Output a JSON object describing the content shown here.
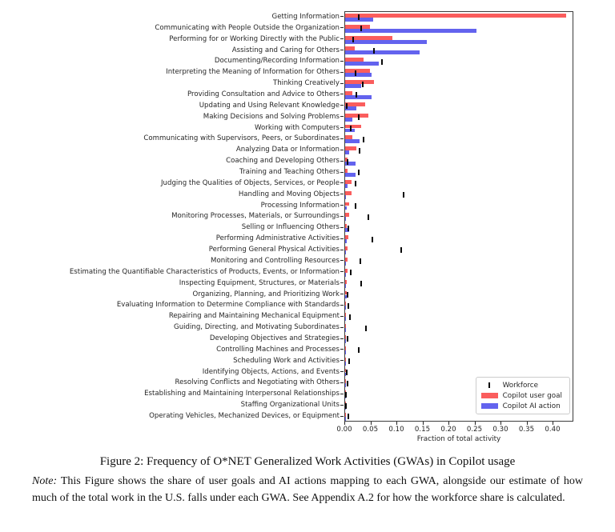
{
  "figure": {
    "caption": "Figure 2: Frequency of O*NET Generalized Work Activities (GWAs) in Copilot usage",
    "note_label": "Note:",
    "note_text": "This Figure shows the share of user goals and AI actions mapping to each GWA, alongside our estimate of how much of the total work in the U.S. falls under each GWA. See Appendix A.2 for how the workforce share is calculated."
  },
  "colors": {
    "copilot_user_goal": "#fa5d5d",
    "copilot_ai_action": "#6363ee",
    "workforce_marker": "#0a0a0a",
    "axis": "#262626"
  },
  "chart_data": {
    "type": "bar",
    "orientation": "horizontal",
    "title": "",
    "xlabel": "Fraction of total activity",
    "xlim": [
      0,
      0.44
    ],
    "xticks": [
      0.0,
      0.05,
      0.1,
      0.15,
      0.2,
      0.25,
      0.3,
      0.35,
      0.4
    ],
    "grid": false,
    "legend_position": "lower right",
    "categories": [
      "Getting Information",
      "Communicating with People Outside the Organization",
      "Performing for or Working Directly with the Public",
      "Assisting and Caring for Others",
      "Documenting/Recording Information",
      "Interpreting the Meaning of Information for Others",
      "Thinking Creatively",
      "Providing Consultation and Advice to Others",
      "Updating and Using Relevant Knowledge",
      "Making Decisions and Solving Problems",
      "Working with Computers",
      "Communicating with Supervisors, Peers, or Subordinates",
      "Analyzing Data or Information",
      "Coaching and Developing Others",
      "Training and Teaching Others",
      "Judging the Qualities of Objects, Services, or People",
      "Handling and Moving Objects",
      "Processing Information",
      "Monitoring Processes, Materials, or Surroundings",
      "Selling or Influencing Others",
      "Performing Administrative Activities",
      "Performing General Physical Activities",
      "Monitoring and Controlling Resources",
      "Estimating the Quantifiable Characteristics of Products, Events, or Information",
      "Inspecting Equipment, Structures, or Materials",
      "Organizing, Planning, and Prioritizing Work",
      "Evaluating Information to Determine Compliance with Standards",
      "Repairing and Maintaining Mechanical Equipment",
      "Guiding, Directing, and Motivating Subordinates",
      "Developing Objectives and Strategies",
      "Controlling Machines and Processes",
      "Scheduling Work and Activities",
      "Identifying Objects, Actions, and Events",
      "Resolving Conflicts and Negotiating with Others",
      "Establishing and Maintaining Interpersonal Relationships",
      "Staffing Organizational Units",
      "Operating Vehicles, Mechanized Devices, or Equipment"
    ],
    "series": [
      {
        "name": "Workforce",
        "marker": "tick",
        "color": "#0a0a0a",
        "values": [
          0.026,
          0.031,
          0.016,
          0.056,
          0.071,
          0.02,
          0.034,
          0.021,
          0.003,
          0.026,
          0.01,
          0.036,
          0.027,
          0.004,
          0.026,
          0.02,
          0.113,
          0.02,
          0.045,
          0.006,
          0.052,
          0.107,
          0.029,
          0.01,
          0.03,
          0.004,
          0.006,
          0.009,
          0.04,
          0.004,
          0.026,
          0.007,
          0.003,
          0.005,
          0.002,
          0.002,
          0.006
        ]
      },
      {
        "name": "Copilot user goal",
        "marker": "bar",
        "color": "#fa5d5d",
        "values": [
          0.424,
          0.047,
          0.09,
          0.019,
          0.035,
          0.047,
          0.055,
          0.014,
          0.039,
          0.044,
          0.03,
          0.014,
          0.021,
          0.004,
          0.005,
          0.013,
          0.012,
          0.007,
          0.008,
          0.003,
          0.006,
          0.004,
          0.005,
          0.004,
          0.003,
          0.003,
          0.002,
          0.002,
          0.002,
          0.002,
          0.002,
          0.002,
          0.002,
          0.002,
          0.002,
          0.001,
          0.001
        ]
      },
      {
        "name": "Copilot AI action",
        "marker": "bar",
        "color": "#6363ee",
        "values": [
          0.054,
          0.252,
          0.157,
          0.143,
          0.065,
          0.05,
          0.03,
          0.05,
          0.021,
          0.014,
          0.018,
          0.027,
          0.007,
          0.02,
          0.02,
          0.005,
          0.002,
          0.003,
          0.002,
          0.007,
          0.003,
          0.002,
          0.002,
          0.002,
          0.002,
          0.003,
          0.002,
          0.001,
          0.002,
          0.002,
          0.001,
          0.002,
          0.002,
          0.002,
          0.002,
          0.001,
          0.001
        ]
      }
    ]
  }
}
